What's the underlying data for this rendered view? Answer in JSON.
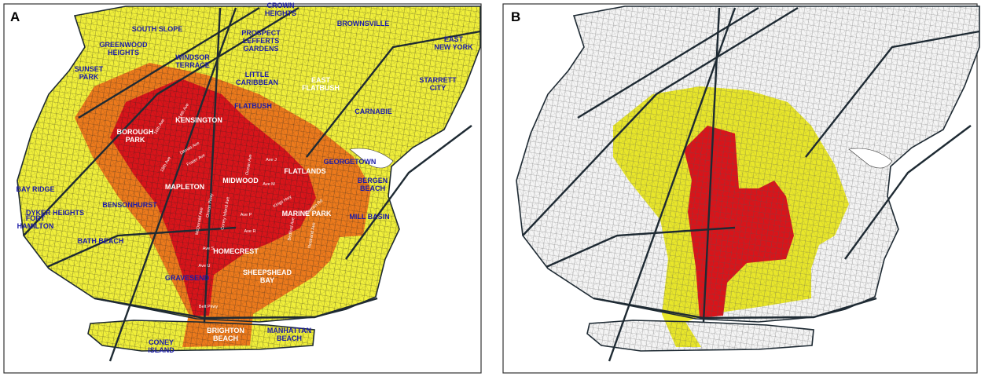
{
  "panels": [
    {
      "label": "A",
      "neighborhoods": [
        {
          "lines": [
            "CROWN",
            "HEIGHTS"
          ],
          "color": "#1c1ca8"
        },
        {
          "lines": [
            "SOUTH SLOPE"
          ],
          "color": "#1c1ca8"
        },
        {
          "lines": [
            "BROWNSVILLE"
          ],
          "color": "#1c1ca8"
        },
        {
          "lines": [
            "GREENWOOD",
            "HEIGHTS"
          ],
          "color": "#1c1ca8"
        },
        {
          "lines": [
            "PROSPECT",
            "LEFFERTS",
            "GARDENS"
          ],
          "color": "#1c1ca8"
        },
        {
          "lines": [
            "WINDSOR",
            "TERRACE"
          ],
          "color": "#1c1ca8"
        },
        {
          "lines": [
            "EAST",
            "NEW YORK"
          ],
          "color": "#1c1ca8"
        },
        {
          "lines": [
            "SUNSET",
            "PARK"
          ],
          "color": "#1c1ca8"
        },
        {
          "lines": [
            "LITTLE",
            "CARIBBEAN"
          ],
          "color": "#1c1ca8"
        },
        {
          "lines": [
            "EAST",
            "FLATBUSH"
          ],
          "color": "#ffffff"
        },
        {
          "lines": [
            "STARRETT",
            "CITY"
          ],
          "color": "#1c1ca8"
        },
        {
          "lines": [
            "FLATBUSH"
          ],
          "color": "#1c1ca8"
        },
        {
          "lines": [
            "KENSINGTON"
          ],
          "color": "#ffffff"
        },
        {
          "lines": [
            "CARNABIE"
          ],
          "color": "#1c1ca8"
        },
        {
          "lines": [
            "BOROUGH",
            "PARK"
          ],
          "color": "#ffffff"
        },
        {
          "lines": [
            "GEORGETOWN"
          ],
          "color": "#1c1ca8"
        },
        {
          "lines": [
            "BAY RIDGE"
          ],
          "color": "#1c1ca8"
        },
        {
          "lines": [
            "FLATLANDS"
          ],
          "color": "#ffffff"
        },
        {
          "lines": [
            "MIDWOOD"
          ],
          "color": "#ffffff"
        },
        {
          "lines": [
            "BERGEN",
            "BEACH"
          ],
          "color": "#1c1ca8"
        },
        {
          "lines": [
            "MAPLETON"
          ],
          "color": "#ffffff"
        },
        {
          "lines": [
            "DYKER HEIGHTS"
          ],
          "color": "#1c1ca8"
        },
        {
          "lines": [
            "BENSONHURST"
          ],
          "color": "#1c1ca8"
        },
        {
          "lines": [
            "MARINE PARK"
          ],
          "color": "#ffffff"
        },
        {
          "lines": [
            "MILL BASIN"
          ],
          "color": "#1c1ca8"
        },
        {
          "lines": [
            "FORT",
            "HAMILTON"
          ],
          "color": "#1c1ca8"
        },
        {
          "lines": [
            "BATH BEACH"
          ],
          "color": "#1c1ca8"
        },
        {
          "lines": [
            "HOMECREST"
          ],
          "color": "#ffffff"
        },
        {
          "lines": [
            "GRAVESEND"
          ],
          "color": "#1c1ca8"
        },
        {
          "lines": [
            "SHEEPSHEAD",
            "BAY"
          ],
          "color": "#ffffff"
        },
        {
          "lines": [
            "CONEY",
            "ISLAND"
          ],
          "color": "#1c1ca8"
        },
        {
          "lines": [
            "BRIGHTON",
            "BEACH"
          ],
          "color": "#ffffff"
        },
        {
          "lines": [
            "MANHATTAN",
            "BEACH"
          ],
          "color": "#1c1ca8"
        }
      ],
      "streets": [
        "14th Ave",
        "16th Ave",
        "18th Ave",
        "Ditmas Ave",
        "Foster Ave",
        "Ocean Pkwy",
        "Coney Island Ave",
        "McDonald Ave",
        "Ocean Ave",
        "Ave J",
        "Ave M",
        "Ave P",
        "Ave R",
        "Ave S",
        "Ave U",
        "Kings Hwy",
        "Bedford Ave",
        "Nostrand Ave",
        "Quentin Rd",
        "Belt Pkwy"
      ]
    },
    {
      "label": "B"
    }
  ]
}
